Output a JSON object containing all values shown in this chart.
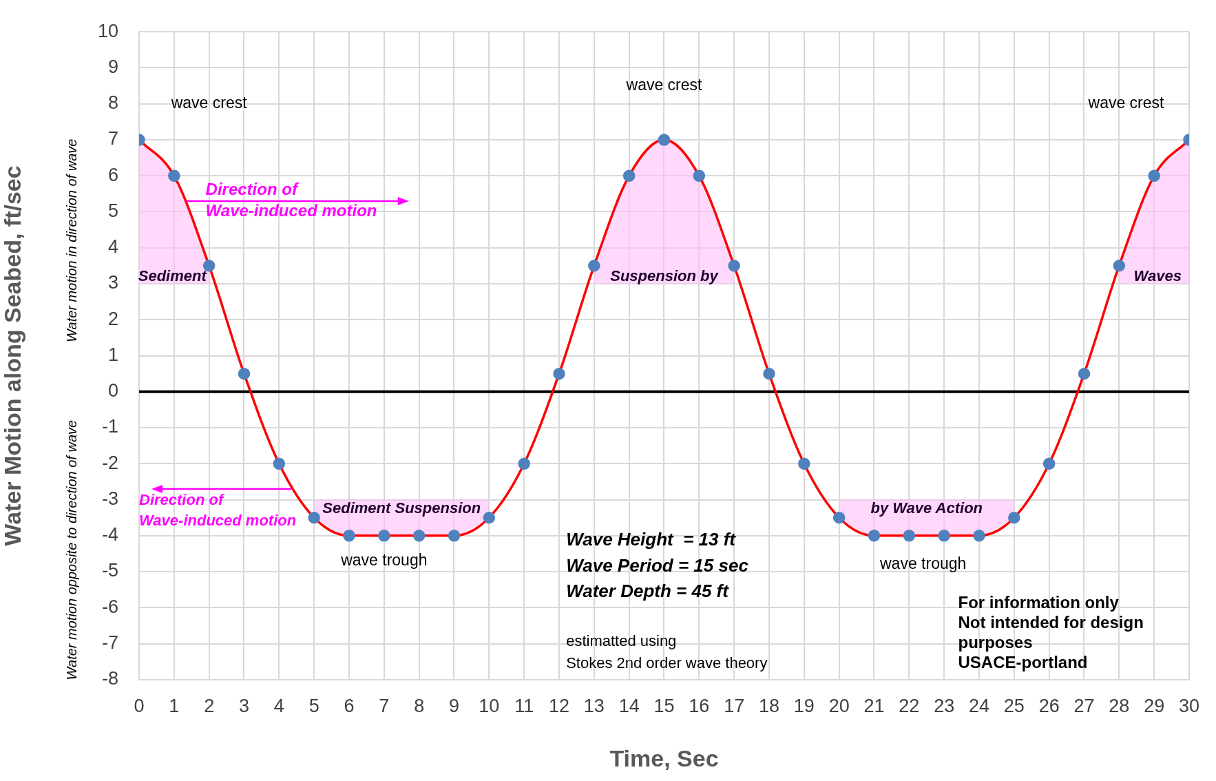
{
  "chart_data": {
    "type": "line",
    "xlabel": "Time, Sec",
    "ylabel": "Water Motion along Seabed, ft/sec",
    "x": [
      0,
      1,
      2,
      3,
      4,
      5,
      6,
      7,
      8,
      9,
      10,
      11,
      12,
      13,
      14,
      15,
      16,
      17,
      18,
      19,
      20,
      21,
      22,
      23,
      24,
      25,
      26,
      27,
      28,
      29,
      30
    ],
    "series": [
      {
        "color": "#ff0000",
        "values": [
          7,
          6,
          3.5,
          0.5,
          -2,
          -3.5,
          -4,
          -4,
          -4,
          -4,
          -3.5,
          -2,
          0.5,
          3.5,
          6,
          7,
          6,
          3.5,
          0.5,
          -2,
          -3.5,
          -4,
          -4,
          -4,
          -4,
          -3.5,
          -2,
          0.5,
          3.5,
          6,
          7
        ],
        "lower": [
          3,
          3,
          3,
          null,
          null,
          -3.5,
          -4,
          -4,
          -4,
          -4,
          -3.5,
          null,
          null,
          3,
          3,
          3,
          3,
          3,
          null,
          null,
          -3.5,
          -4,
          -4,
          -4,
          -4,
          -3.5,
          null,
          null,
          3,
          3,
          3
        ],
        "upper": [
          7,
          6,
          3.5,
          null,
          null,
          -3,
          -3,
          -3,
          -3,
          -3,
          -3,
          null,
          null,
          3.5,
          6,
          7,
          6,
          3.5,
          null,
          null,
          -3,
          -3,
          -3,
          -3,
          -3,
          -3,
          null,
          null,
          3.5,
          6,
          7
        ]
      }
    ],
    "xlim": [
      0,
      30
    ],
    "xticks": [
      0,
      1,
      2,
      3,
      4,
      5,
      6,
      7,
      8,
      9,
      10,
      11,
      12,
      13,
      14,
      15,
      16,
      17,
      18,
      19,
      20,
      21,
      22,
      23,
      24,
      25,
      26,
      27,
      28,
      29,
      30
    ],
    "ylim": [
      -8,
      10
    ],
    "yticks": [
      -8,
      -7,
      -6,
      -5,
      -4,
      -3,
      -2,
      -1,
      0,
      1,
      2,
      3,
      4,
      5,
      6,
      7,
      8,
      9,
      10
    ],
    "grid": true,
    "legend": false,
    "marker": "circle",
    "line_style": "solid",
    "ref_lines": [
      {
        "axis": "y",
        "value": 0,
        "color": "#000000"
      }
    ],
    "annotations": [
      "wave crest",
      "wave crest",
      "wave crest",
      "wave trough",
      "wave trough",
      "Sediment",
      "Suspension by",
      "Waves",
      "Sediment Suspension",
      "by Wave Action",
      {
        "text": "Direction of",
        "x": 1.35,
        "y": 5.3
      },
      "Wave-induced motion",
      {
        "text": "Direction of",
        "x": 4.35,
        "y": -2.7
      },
      "Wave-induced motion",
      "Wave Height  = 13 ft",
      "Wave Period = 15 sec",
      "Water Depth = 45 ft",
      "estimatted using",
      "Stokes 2nd order wave theory",
      "For information only",
      "Not intended for design",
      "purposes",
      "USACE-portland",
      "Water motion in direction of wave",
      "Water motion opposite to direction of wave"
    ]
  }
}
